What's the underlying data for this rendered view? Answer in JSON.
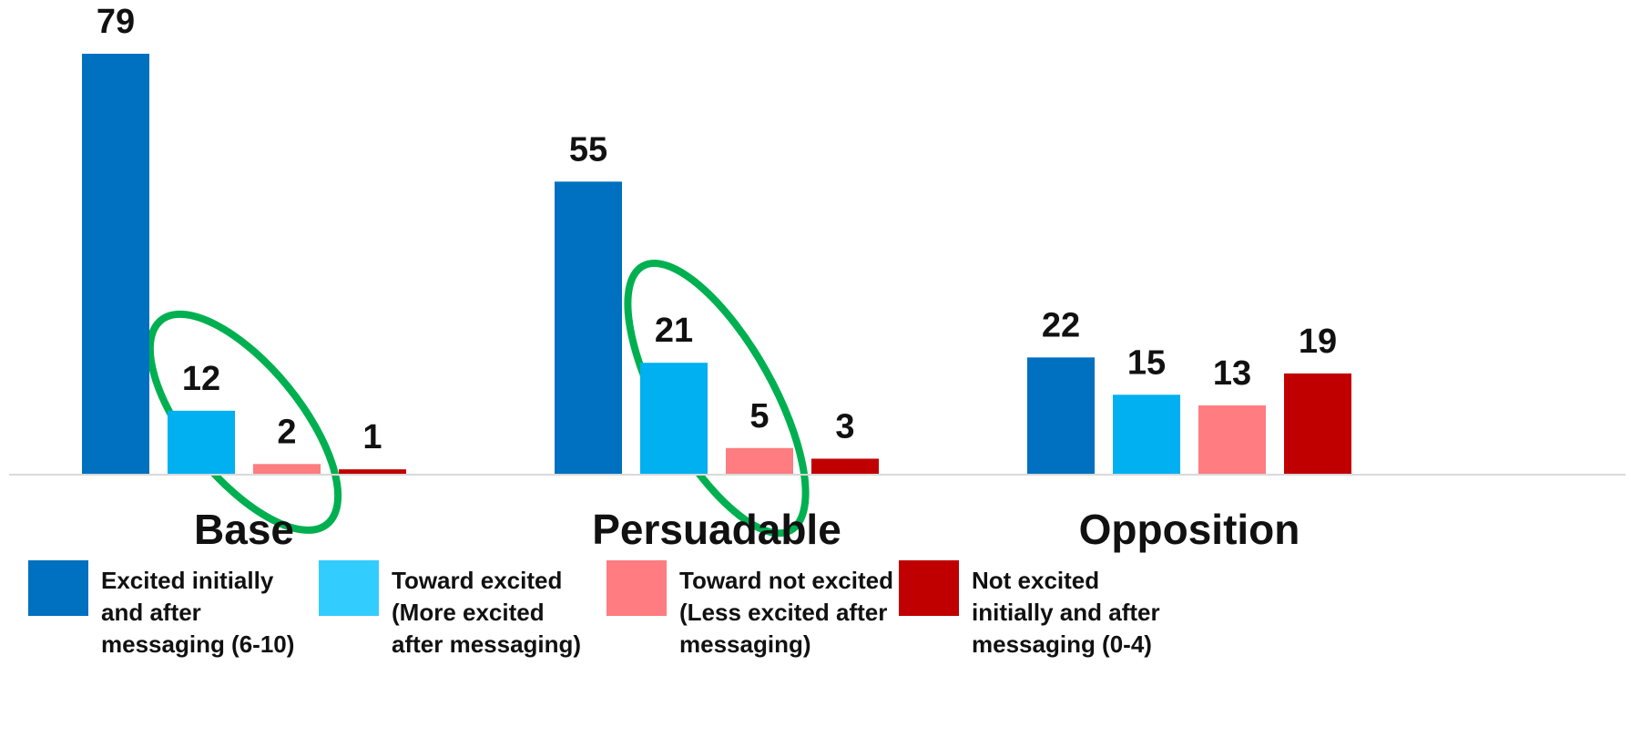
{
  "chart_data": {
    "type": "bar",
    "title": "",
    "xlabel": "",
    "ylabel": "",
    "ylim": [
      0,
      80
    ],
    "grid": false,
    "legend_position": "bottom",
    "categories": [
      "Base",
      "Persuadable",
      "Opposition"
    ],
    "series": [
      {
        "name": "Excited initially and after messaging (6-10)",
        "legend_lines": [
          "Excited initially",
          "and after",
          "messaging (6-10)"
        ],
        "color": "#0070C0",
        "values": [
          79,
          55,
          22
        ]
      },
      {
        "name": "Toward excited (More excited after messaging)",
        "legend_lines": [
          "Toward excited",
          "(More excited",
          "after messaging)"
        ],
        "color": "#00B0F0",
        "legend_color": "#33CCFF",
        "values": [
          12,
          21,
          15
        ]
      },
      {
        "name": "Toward not excited (Less excited after messaging)",
        "legend_lines": [
          "Toward not excited",
          "(Less excited after",
          "messaging)"
        ],
        "color": "#FF7C80",
        "values": [
          2,
          5,
          13
        ]
      },
      {
        "name": "Not excited initially and after messaging (0-4)",
        "legend_lines": [
          "Not excited",
          "initially and after",
          "messaging (0-4)"
        ],
        "color": "#C00000",
        "values": [
          1,
          3,
          19
        ]
      }
    ],
    "annotations": [
      {
        "type": "ellipse-highlight",
        "category": "Base",
        "series": [
          1,
          2
        ],
        "color": "#00B050"
      },
      {
        "type": "ellipse-highlight",
        "category": "Persuadable",
        "series": [
          1,
          2
        ],
        "color": "#00B050"
      }
    ]
  }
}
